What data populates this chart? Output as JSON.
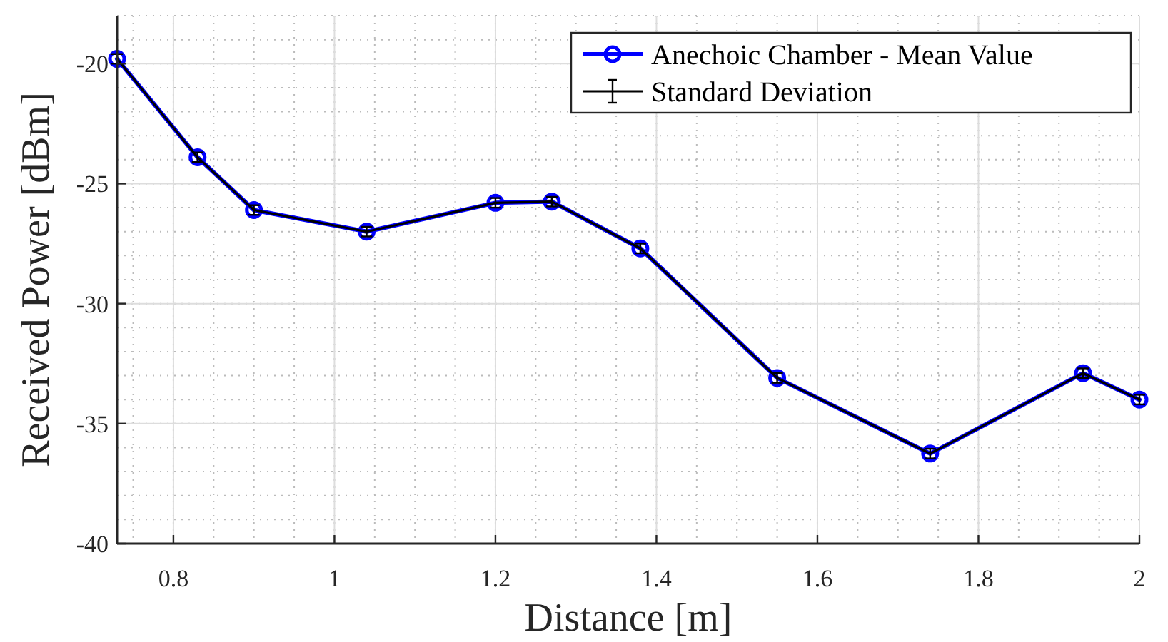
{
  "chart_data": {
    "type": "line",
    "xlabel": "Distance [m]",
    "ylabel": "Received Power [dBm]",
    "x": [
      0.73,
      0.83,
      0.9,
      1.04,
      1.2,
      1.27,
      1.38,
      1.55,
      1.74,
      1.93,
      2.0
    ],
    "series": [
      {
        "name": "Anechoic Chamber - Mean Value",
        "color": "#0000ff",
        "marker": "circle",
        "values": [
          -19.8,
          -23.9,
          -26.1,
          -27.0,
          -25.8,
          -25.75,
          -27.7,
          -33.1,
          -36.25,
          -32.9,
          -34.0
        ]
      },
      {
        "name": "Standard Deviation",
        "color": "#000000",
        "marker": "none",
        "values": [
          -19.8,
          -23.9,
          -26.1,
          -27.0,
          -25.8,
          -25.75,
          -27.7,
          -33.1,
          -36.25,
          -32.9,
          -34.0
        ],
        "errors": [
          0.2,
          0.2,
          0.2,
          0.2,
          0.2,
          0.2,
          0.2,
          0.2,
          0.2,
          0.2,
          0.2
        ]
      }
    ],
    "xlim": [
      0.73,
      2
    ],
    "xticks": [
      0.8,
      1,
      1.2,
      1.4,
      1.6,
      1.8,
      2
    ],
    "ylim": [
      -40,
      -18
    ],
    "yticks": [
      -40,
      -35,
      -30,
      -25,
      -20
    ],
    "grid": true,
    "legend": "top right",
    "line_style": "solid"
  }
}
